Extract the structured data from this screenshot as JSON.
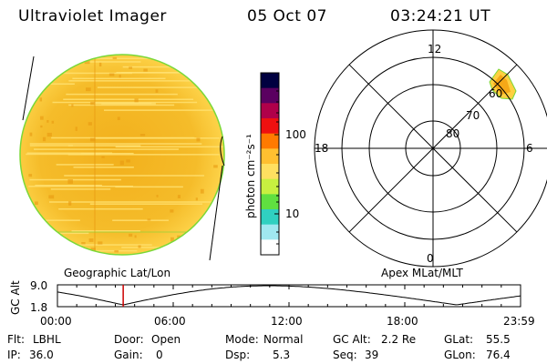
{
  "header": {
    "instrument": "Ultraviolet Imager",
    "date": "05 Oct 07",
    "time": "03:24:21 UT"
  },
  "colorbar": {
    "unit_label": "photon cm⁻²s⁻¹",
    "ticks": [
      "100",
      "10"
    ],
    "colors": [
      "#000040",
      "#5a0060",
      "#b0004a",
      "#ee1010",
      "#ff7a00",
      "#ffc030",
      "#ffe060",
      "#c8f040",
      "#60e040",
      "#30d0c0",
      "#a0e8f0",
      "#ffffff"
    ]
  },
  "polar_plot": {
    "hour_labels": {
      "top": "12",
      "left": "18",
      "right": "6",
      "bottom": "0"
    },
    "lat_labels": [
      "60",
      "70",
      "80"
    ],
    "label": "Apex MLat/MLT"
  },
  "globe": {
    "label": "Geographic Lat/Lon"
  },
  "altitude_strip": {
    "axis_label": "GC Alt",
    "y_top": "9.0",
    "y_bottom": "1.8",
    "x_ticks": [
      "00:00",
      "06:00",
      "12:00",
      "18:00",
      "23:59"
    ],
    "current_time_fraction": 0.142
  },
  "info": {
    "row1": [
      {
        "key": "Flt:",
        "value": "LBHL"
      },
      {
        "key": "Door:",
        "value": "Open"
      },
      {
        "key": "Mode:",
        "value": "Normal"
      },
      {
        "key": "GC Alt:",
        "value": "2.2 Re"
      },
      {
        "key": "GLat:",
        "value": "55.5"
      }
    ],
    "row2": [
      {
        "key": "IP:",
        "value": "36.0"
      },
      {
        "key": "Gain:",
        "value": "0"
      },
      {
        "key": "Dsp:",
        "value": "5.3"
      },
      {
        "key": "Seq:",
        "value": "39"
      },
      {
        "key": "GLon:",
        "value": "76.4"
      }
    ]
  },
  "colors": {
    "globe_fill": "#f5b81c",
    "globe_light": "#ffe070",
    "globe_dark": "#e89a10",
    "globe_edge": "#7ad838",
    "marker": "#cc0000"
  }
}
